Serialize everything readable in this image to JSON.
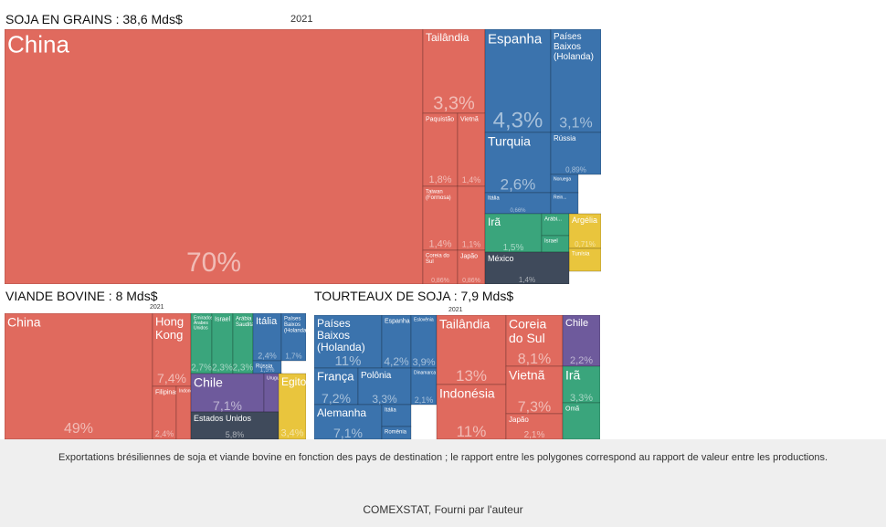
{
  "palette": {
    "asia": "#e06a5e",
    "europe": "#3b73ad",
    "middle_east": "#3aa57c",
    "americas": "#6e5a9c",
    "north_america": "#3f4a5b",
    "africa": "#e9c53d",
    "oceania": "#e9a352",
    "other": "#aab0b8"
  },
  "caption": {
    "text": "Exportations brésiliennes de soja et viande bovine en fonction des pays de destination ; le rapport entre les polygones correspond au rapport de valeur entre les productions.",
    "source": "COMEXSTAT, Fourni par l'auteur"
  },
  "chart_data": [
    {
      "type": "treemap",
      "title": "SOJA EN GRAINS : 38,6 Mds$",
      "subtitle": "2021",
      "items": [
        {
          "label": "China",
          "value": 70,
          "value_label": "70%",
          "group": "asia"
        },
        {
          "label": "Tailândia",
          "value": 3.3,
          "value_label": "3,3%",
          "group": "asia"
        },
        {
          "label": "Paquistão",
          "value": 1.8,
          "value_label": "1,8%",
          "group": "asia"
        },
        {
          "label": "Vietnã",
          "value": 1.4,
          "value_label": "1,4%",
          "group": "asia"
        },
        {
          "label": "Taiwan (Formosa)",
          "value": 1.4,
          "value_label": "1,4%",
          "group": "asia"
        },
        {
          "label": "",
          "value": 1.1,
          "value_label": "1,1%",
          "group": "asia"
        },
        {
          "label": "Coreia do Sul",
          "value": 0.86,
          "value_label": "0,86%",
          "group": "asia"
        },
        {
          "label": "Japão",
          "value": 0.86,
          "value_label": "0,86%",
          "group": "asia"
        },
        {
          "label": "Espanha",
          "value": 4.3,
          "value_label": "4,3%",
          "group": "europe"
        },
        {
          "label": "Países Baixos (Holanda)",
          "value": 3.1,
          "value_label": "3,1%",
          "group": "europe"
        },
        {
          "label": "Turquia",
          "value": 2.6,
          "value_label": "2,6%",
          "group": "europe"
        },
        {
          "label": "Rússia",
          "value": 0.89,
          "value_label": "0,89%",
          "group": "europe"
        },
        {
          "label": "Itália",
          "value": 0.66,
          "value_label": "0,66%",
          "group": "europe"
        },
        {
          "label": "Noruega",
          "value": 0.4,
          "value_label": "",
          "group": "europe"
        },
        {
          "label": "Rein...",
          "value": 0.4,
          "value_label": "",
          "group": "europe"
        },
        {
          "label": "Irã",
          "value": 1.5,
          "value_label": "1,5%",
          "group": "middle_east"
        },
        {
          "label": "Arábi...",
          "value": 0.47,
          "value_label": "",
          "group": "middle_east"
        },
        {
          "label": "Israel",
          "value": 0.3,
          "value_label": "",
          "group": "middle_east"
        },
        {
          "label": "Argélia",
          "value": 0.71,
          "value_label": "0,71%",
          "group": "africa"
        },
        {
          "label": "Tunísia",
          "value": 0.3,
          "value_label": "",
          "group": "africa"
        },
        {
          "label": "México",
          "value": 1.4,
          "value_label": "1,4%",
          "group": "north_america"
        }
      ]
    },
    {
      "type": "treemap",
      "title": "VIANDE BOVINE : 8 Mds$",
      "subtitle": "2021",
      "items": [
        {
          "label": "China",
          "value": 49,
          "value_label": "49%",
          "group": "asia"
        },
        {
          "label": "Hong Kong",
          "value": 7.4,
          "value_label": "7,4%",
          "group": "asia"
        },
        {
          "label": "Filipinas",
          "value": 2.4,
          "value_label": "2,4%",
          "group": "asia"
        },
        {
          "label": "Indonésia",
          "value": 1.4,
          "value_label": "",
          "group": "asia"
        },
        {
          "label": "Emirados Árabes Unidos",
          "value": 2.7,
          "value_label": "2,7%",
          "group": "middle_east"
        },
        {
          "label": "Israel",
          "value": 2.3,
          "value_label": "2,3%",
          "group": "middle_east"
        },
        {
          "label": "Arábia Saudita",
          "value": 2.3,
          "value_label": "2,3%",
          "group": "middle_east"
        },
        {
          "label": "Itália",
          "value": 2.4,
          "value_label": "2,4%",
          "group": "europe"
        },
        {
          "label": "Países Baixos (Holanda)",
          "value": 1.7,
          "value_label": "1,7%",
          "group": "europe"
        },
        {
          "label": "Rússia",
          "value": 1.5,
          "value_label": "1,5%",
          "group": "europe"
        },
        {
          "label": "Chile",
          "value": 7.1,
          "value_label": "7,1%",
          "group": "americas"
        },
        {
          "label": "Uruguai",
          "value": 1.3,
          "value_label": "",
          "group": "americas"
        },
        {
          "label": "Estados Unidos",
          "value": 5.8,
          "value_label": "5,8%",
          "group": "north_america"
        },
        {
          "label": "Egito",
          "value": 3.4,
          "value_label": "3,4%",
          "group": "africa"
        }
      ]
    },
    {
      "type": "treemap",
      "title": "TOURTEAUX DE SOJA : 7,9 Mds$",
      "subtitle": "2021",
      "items": [
        {
          "label": "Países Baixos (Holanda)",
          "value": 11,
          "value_label": "11%",
          "group": "europe"
        },
        {
          "label": "Espanha",
          "value": 4.2,
          "value_label": "4,2%",
          "group": "europe"
        },
        {
          "label": "Eslovênia",
          "value": 3.9,
          "value_label": "3,9%",
          "group": "europe"
        },
        {
          "label": "França",
          "value": 7.2,
          "value_label": "7,2%",
          "group": "europe"
        },
        {
          "label": "Polônia",
          "value": 3.3,
          "value_label": "3,3%",
          "group": "europe"
        },
        {
          "label": "Dinamarca",
          "value": 2.1,
          "value_label": "2,1%",
          "group": "europe"
        },
        {
          "label": "Alemanha",
          "value": 7.1,
          "value_label": "7,1%",
          "group": "europe"
        },
        {
          "label": "Itália",
          "value": 1.5,
          "value_label": "",
          "group": "europe"
        },
        {
          "label": "Romênia",
          "value": 1.0,
          "value_label": "",
          "group": "europe"
        },
        {
          "label": "Tailândia",
          "value": 13,
          "value_label": "13%",
          "group": "asia"
        },
        {
          "label": "Indonésia",
          "value": 11,
          "value_label": "11%",
          "group": "asia"
        },
        {
          "label": "Coreia do Sul",
          "value": 8.1,
          "value_label": "8,1%",
          "group": "asia"
        },
        {
          "label": "Vietnã",
          "value": 7.3,
          "value_label": "7,3%",
          "group": "asia"
        },
        {
          "label": "Japão",
          "value": 2.1,
          "value_label": "2,1%",
          "group": "asia"
        },
        {
          "label": "Chile",
          "value": 2.2,
          "value_label": "2,2%",
          "group": "americas"
        },
        {
          "label": "Irã",
          "value": 3.3,
          "value_label": "3,3%",
          "group": "middle_east"
        },
        {
          "label": "Omã",
          "value": 1.0,
          "value_label": "",
          "group": "middle_east"
        }
      ]
    }
  ]
}
